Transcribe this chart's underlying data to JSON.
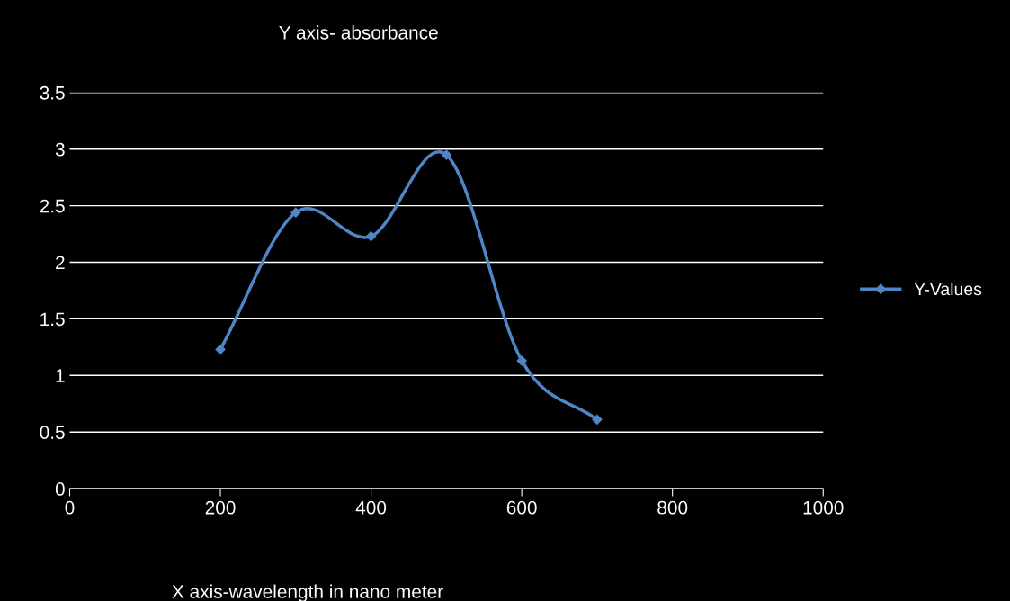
{
  "chart_data": {
    "type": "line",
    "title": "Y axis- absorbance",
    "xlabel": "X axis-wavelength in nano meter",
    "x": [
      200,
      300,
      400,
      500,
      600,
      700
    ],
    "series": [
      {
        "name": "Y-Values",
        "color": "#4f86c6",
        "values": [
          1.23,
          2.44,
          2.23,
          2.95,
          1.13,
          0.61
        ]
      }
    ],
    "xlim": [
      0,
      1000
    ],
    "xticks": [
      0,
      200,
      400,
      600,
      800,
      1000
    ],
    "ylim": [
      0,
      3.5
    ],
    "yticks": [
      0,
      0.5,
      1,
      1.5,
      2,
      2.5,
      3,
      3.5
    ],
    "grid": "y",
    "legend": "right",
    "marker": "diamond",
    "line_style": "solid"
  }
}
